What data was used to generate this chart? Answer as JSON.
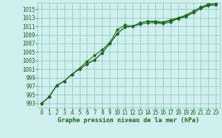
{
  "x": [
    0,
    1,
    2,
    3,
    4,
    5,
    6,
    7,
    8,
    9,
    10,
    11,
    12,
    13,
    14,
    15,
    16,
    17,
    18,
    19,
    20,
    21,
    22,
    23
  ],
  "line1": [
    993,
    994.5,
    997.2,
    998.2,
    999.8,
    1001.2,
    1002.8,
    1004.2,
    1005.5,
    1007.2,
    1010.2,
    1011.3,
    1011.0,
    1011.5,
    1011.8,
    1011.8,
    1011.6,
    1012.0,
    1012.8,
    1013.2,
    1014.2,
    1015.2,
    1015.8,
    1016.0
  ],
  "line2": [
    993,
    994.5,
    997.2,
    998.2,
    999.8,
    1001.0,
    1002.2,
    1003.2,
    1004.8,
    1007.0,
    1009.3,
    1010.8,
    1011.0,
    1011.8,
    1012.2,
    1012.2,
    1012.0,
    1012.5,
    1013.0,
    1013.6,
    1014.5,
    1015.5,
    1016.2,
    1016.3
  ],
  "line3": [
    993,
    994.5,
    997.2,
    998.2,
    999.8,
    1001.0,
    1002.2,
    1003.2,
    1004.8,
    1007.0,
    1009.3,
    1010.8,
    1011.0,
    1011.8,
    1012.2,
    1012.0,
    1011.8,
    1012.3,
    1012.8,
    1013.4,
    1014.2,
    1015.2,
    1016.0,
    1016.3
  ],
  "line_color": "#1a6b1a",
  "bg_color": "#cff0ee",
  "grid_color": "#8bbfba",
  "xlabel": "Graphe pression niveau de la mer (hPa)",
  "ylim": [
    992,
    1016.5
  ],
  "yticks": [
    993,
    995,
    997,
    999,
    1001,
    1003,
    1005,
    1007,
    1009,
    1011,
    1013,
    1015
  ],
  "marker": "D",
  "marker_size": 1.8,
  "linewidth": 0.8,
  "xlabel_fontsize": 6.5,
  "tick_fontsize": 5.5,
  "figsize": [
    3.2,
    2.0
  ],
  "dpi": 100
}
